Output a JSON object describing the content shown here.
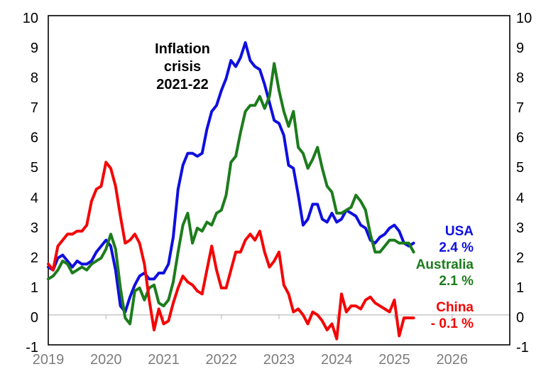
{
  "chart": {
    "annotation": {
      "line1": "Inflation",
      "line2": "crisis",
      "line3": "2021-22"
    },
    "y_axis": {
      "ticks": [
        "10",
        "9",
        "8",
        "7",
        "6",
        "5",
        "4",
        "3",
        "2",
        "1",
        "0",
        "-1"
      ],
      "max": 10,
      "min": -1,
      "shown_on_both_sides": true
    },
    "x_axis": {
      "ticks": [
        "2019",
        "2020",
        "2021",
        "2022",
        "2023",
        "2024",
        "2025",
        "2026"
      ]
    },
    "series_labels": {
      "usa": {
        "name": "USA",
        "value": "2.4 %",
        "color": "#0f0fe0"
      },
      "australia": {
        "name": "Australia",
        "value": "2.1 %",
        "color": "#1c7c1c"
      },
      "china": {
        "name": "China",
        "value": "- 0.1 %",
        "color": "#f40404"
      }
    },
    "colors": {
      "background": "#ffffff",
      "plot_border": "#000000",
      "zero_gridline": "#c8c8c8",
      "year_tick": "#bfbfbf",
      "x_label_text": "#7d7d7d",
      "y_label_text": "#000000",
      "annotation_text": "#000000"
    }
  },
  "chart_data": {
    "type": "line",
    "title": "",
    "xlabel": "",
    "ylabel": "",
    "x_start": "2019-01",
    "x_freq": "monthly",
    "x_tick_labels": [
      "2019",
      "2020",
      "2021",
      "2022",
      "2023",
      "2024",
      "2025",
      "2026"
    ],
    "x_axis_span_years": 8,
    "ylim": [
      -1,
      10
    ],
    "y_tick_step": 1,
    "grid": "zero-line-only",
    "legend_position": "right-of-line-ends",
    "annotation": "Inflation crisis 2021-22",
    "series": [
      {
        "name": "USA",
        "color": "#0f0fe0",
        "latest_label": "2.4 %",
        "values": [
          1.6,
          1.5,
          1.9,
          2.0,
          1.8,
          1.6,
          1.8,
          1.7,
          1.7,
          1.8,
          2.1,
          2.3,
          2.5,
          2.3,
          1.5,
          0.3,
          0.1,
          0.6,
          1.0,
          1.3,
          1.4,
          1.2,
          1.2,
          1.4,
          1.4,
          1.7,
          2.6,
          4.2,
          5.0,
          5.4,
          5.4,
          5.3,
          5.4,
          6.2,
          6.8,
          7.0,
          7.5,
          7.9,
          8.5,
          8.3,
          8.6,
          9.1,
          8.5,
          8.3,
          8.2,
          7.7,
          7.1,
          6.5,
          6.4,
          6.0,
          5.0,
          4.9,
          4.0,
          3.0,
          3.2,
          3.7,
          3.7,
          3.2,
          3.1,
          3.4,
          3.1,
          3.2,
          3.5,
          3.4,
          3.3,
          3.0,
          2.9,
          2.5,
          2.4,
          2.6,
          2.7,
          2.9,
          3.0,
          2.8,
          2.4,
          2.3,
          2.4
        ]
      },
      {
        "name": "Australia",
        "color": "#1c7c1c",
        "latest_label": "2.1 %",
        "values": [
          1.2,
          1.3,
          1.5,
          1.8,
          1.7,
          1.4,
          1.5,
          1.6,
          1.5,
          1.7,
          1.8,
          1.9,
          2.2,
          2.7,
          2.2,
          0.9,
          -0.1,
          -0.3,
          0.8,
          0.9,
          0.5,
          0.9,
          1.0,
          0.4,
          0.3,
          0.5,
          1.1,
          2.1,
          3.0,
          3.4,
          2.4,
          2.9,
          2.8,
          3.1,
          3.0,
          3.4,
          3.5,
          4.0,
          5.1,
          5.3,
          6.1,
          6.8,
          7.0,
          7.0,
          7.3,
          6.9,
          7.3,
          8.4,
          7.5,
          6.8,
          6.3,
          6.8,
          5.6,
          5.4,
          4.9,
          5.2,
          5.6,
          4.9,
          4.3,
          4.1,
          3.4,
          3.4,
          3.5,
          3.6,
          4.0,
          3.8,
          3.5,
          2.7,
          2.1,
          2.1,
          2.3,
          2.5,
          2.5,
          2.4,
          2.4,
          2.4,
          2.1
        ]
      },
      {
        "name": "China",
        "color": "#f40404",
        "latest_label": "- 0.1 %",
        "values": [
          1.7,
          1.5,
          2.3,
          2.5,
          2.7,
          2.7,
          2.8,
          2.8,
          3.0,
          3.8,
          4.2,
          4.3,
          5.1,
          4.9,
          4.3,
          3.3,
          2.4,
          2.5,
          2.7,
          2.4,
          1.7,
          0.5,
          -0.5,
          0.2,
          -0.3,
          -0.2,
          0.4,
          0.9,
          1.3,
          1.1,
          1.0,
          0.8,
          0.7,
          1.5,
          2.3,
          1.5,
          0.9,
          0.9,
          1.5,
          2.1,
          2.1,
          2.5,
          2.7,
          2.5,
          2.8,
          2.1,
          1.6,
          1.8,
          2.1,
          1.0,
          0.7,
          0.1,
          0.2,
          0.0,
          -0.3,
          0.1,
          0.0,
          -0.2,
          -0.5,
          -0.3,
          -0.8,
          0.7,
          0.1,
          0.3,
          0.3,
          0.2,
          0.5,
          0.6,
          0.4,
          0.3,
          0.2,
          0.1,
          0.5,
          -0.7,
          -0.1,
          -0.1,
          -0.1
        ]
      }
    ]
  }
}
